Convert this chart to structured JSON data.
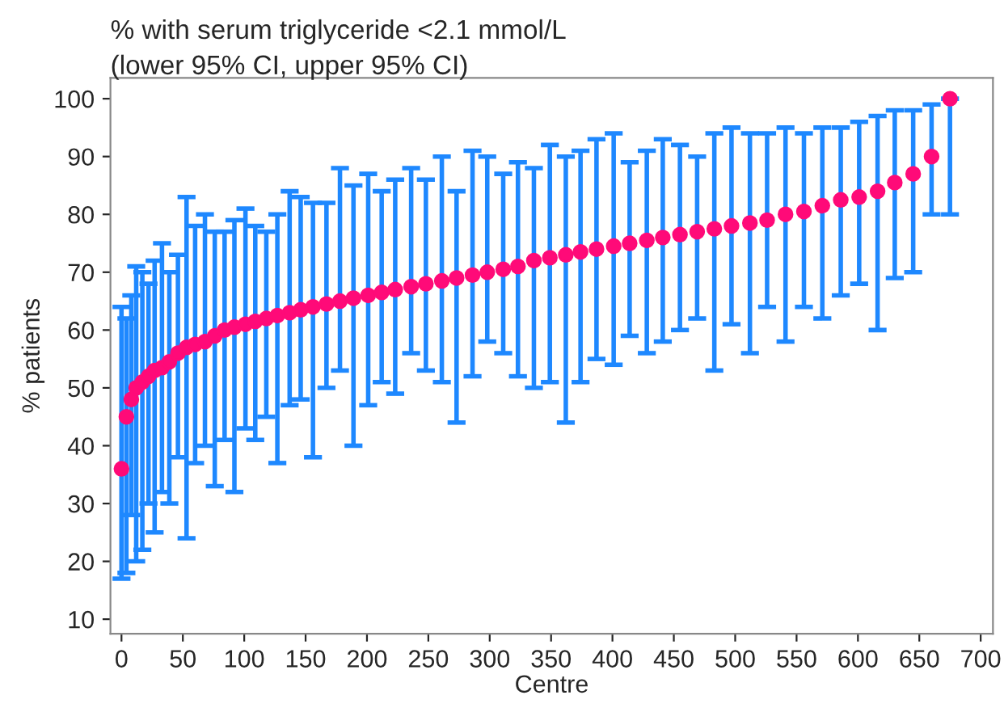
{
  "chart_data": {
    "type": "scatter",
    "title": "% with serum triglyceride <2.1 mmol/L",
    "subtitle": "(lower 95% CI, upper 95% CI)",
    "xlabel": "Centre",
    "ylabel": "% patients",
    "xlim": [
      -9,
      710
    ],
    "xticks": [
      0,
      50,
      100,
      150,
      200,
      250,
      300,
      350,
      400,
      450,
      500,
      550,
      600,
      650,
      700
    ],
    "ylim": [
      7.5,
      103.6
    ],
    "yticks": [
      10,
      20,
      30,
      40,
      50,
      60,
      70,
      80,
      90,
      100
    ],
    "grid": false,
    "legend": false,
    "marker": "circle",
    "series": [
      {
        "color": "#ff0a78",
        "x": [
          0,
          4,
          8,
          12,
          17,
          22,
          27,
          33,
          39,
          46,
          53,
          60,
          68,
          76,
          84,
          92,
          101,
          109,
          118,
          127,
          137,
          146,
          156,
          167,
          178,
          189,
          201,
          212,
          223,
          236,
          248,
          261,
          273,
          286,
          298,
          311,
          323,
          336,
          349,
          362,
          374,
          387,
          401,
          414,
          428,
          441,
          455,
          469,
          483,
          497,
          512,
          526,
          541,
          556,
          571,
          586,
          601,
          616,
          630,
          645,
          660,
          675
        ],
        "values": [
          36,
          45,
          48,
          50,
          51,
          52,
          53,
          53.5,
          54.5,
          56,
          57,
          57.5,
          58,
          59,
          60,
          60.5,
          61,
          61.5,
          62,
          62.5,
          63,
          63.5,
          64,
          64.5,
          65,
          65.5,
          66,
          66.5,
          67,
          67.5,
          68,
          68.5,
          69,
          69.5,
          70,
          70.5,
          71,
          72,
          72.5,
          73,
          73.5,
          74,
          74.5,
          75,
          75.5,
          76,
          76.5,
          77,
          77.5,
          78,
          78.5,
          79,
          80,
          80.5,
          81.5,
          82.5,
          83,
          84,
          85.5,
          87,
          90,
          100
        ],
        "errors": [
          [
            17,
            64
          ],
          [
            18,
            62
          ],
          [
            28,
            66
          ],
          [
            20,
            71
          ],
          [
            22,
            70
          ],
          [
            30,
            68
          ],
          [
            25,
            72
          ],
          [
            32,
            75
          ],
          [
            30,
            70
          ],
          [
            38,
            73
          ],
          [
            24,
            83
          ],
          [
            37,
            78
          ],
          [
            40,
            80
          ],
          [
            33,
            77
          ],
          [
            41,
            77
          ],
          [
            32,
            79
          ],
          [
            43,
            81
          ],
          [
            41,
            78
          ],
          [
            45,
            77
          ],
          [
            37,
            80
          ],
          [
            47,
            84
          ],
          [
            48,
            83
          ],
          [
            38,
            82
          ],
          [
            50,
            82
          ],
          [
            53,
            88
          ],
          [
            40,
            85
          ],
          [
            47,
            87
          ],
          [
            51,
            84
          ],
          [
            49,
            86
          ],
          [
            56,
            88
          ],
          [
            53,
            86
          ],
          [
            51,
            90
          ],
          [
            44,
            84
          ],
          [
            52,
            91
          ],
          [
            58,
            90
          ],
          [
            56,
            87
          ],
          [
            52,
            89
          ],
          [
            50,
            88
          ],
          [
            51,
            92
          ],
          [
            44,
            90
          ],
          [
            51,
            91
          ],
          [
            55,
            93
          ],
          [
            54,
            94
          ],
          [
            59,
            89
          ],
          [
            56,
            91
          ],
          [
            58,
            93
          ],
          [
            60,
            92
          ],
          [
            62,
            90
          ],
          [
            53,
            94
          ],
          [
            61,
            95
          ],
          [
            56,
            94
          ],
          [
            64,
            94
          ],
          [
            58,
            95
          ],
          [
            64,
            94
          ],
          [
            62,
            95
          ],
          [
            66,
            95
          ],
          [
            68,
            96
          ],
          [
            60,
            97
          ],
          [
            69,
            98
          ],
          [
            70,
            98
          ],
          [
            80,
            99
          ],
          [
            80,
            100
          ]
        ]
      }
    ]
  }
}
